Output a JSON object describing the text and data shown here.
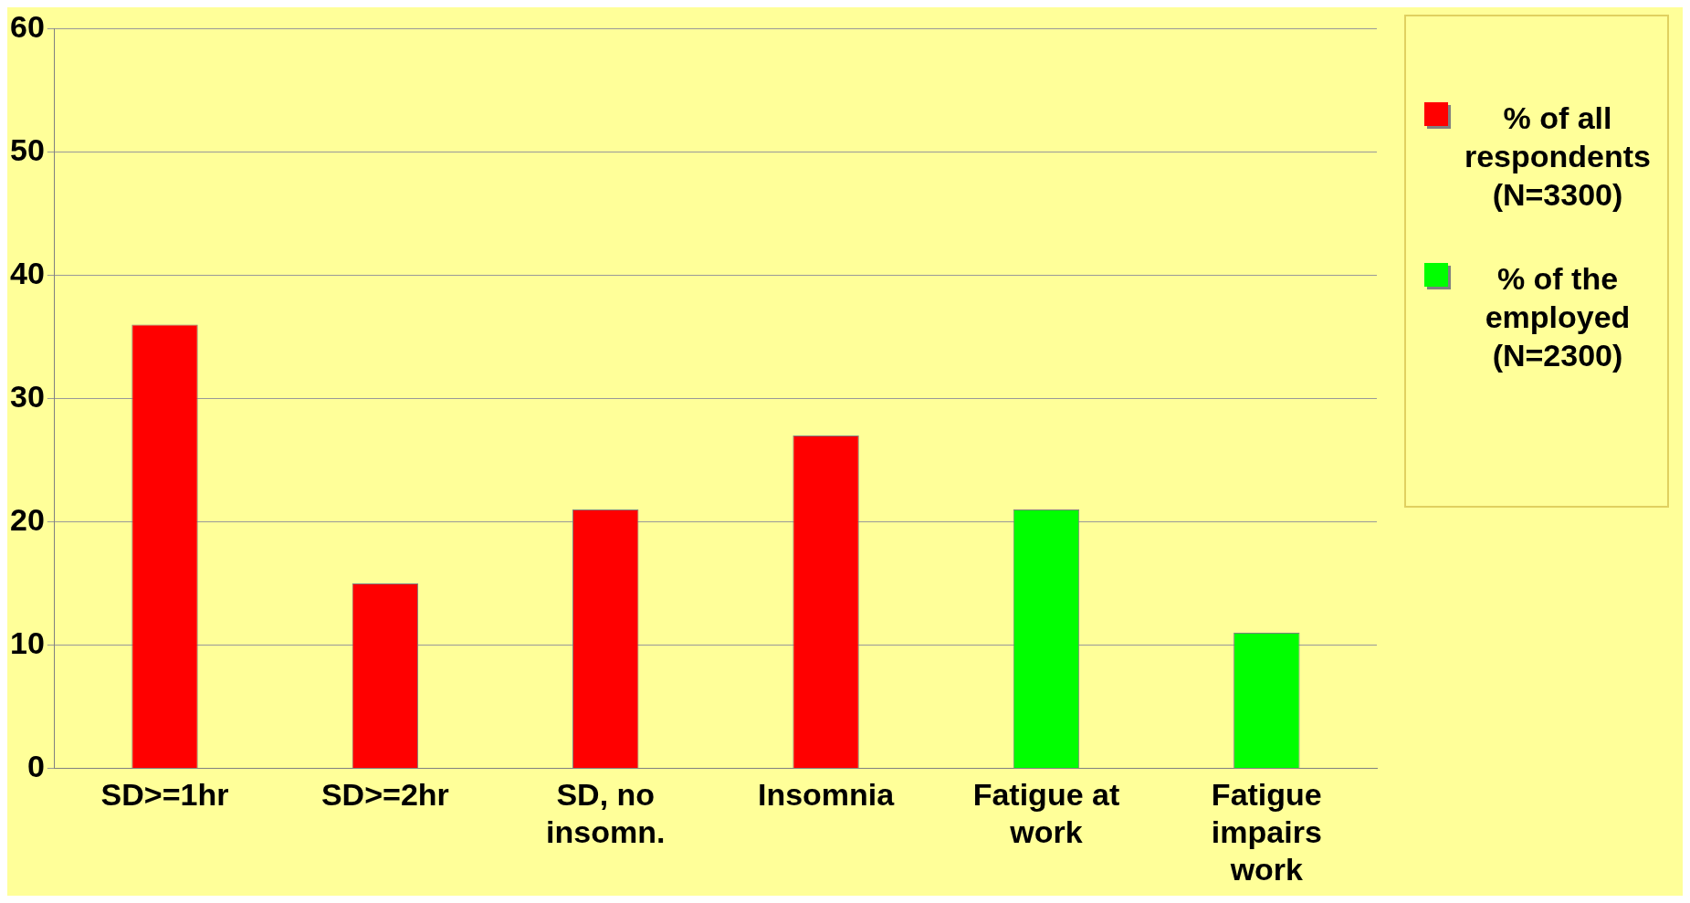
{
  "chart_data": {
    "type": "bar",
    "categories": [
      "SD>=1hr",
      "SD>=2hr",
      "SD, no insomn.",
      "Insomnia",
      "Fatigue at work",
      "Fatigue impairs work"
    ],
    "series": [
      {
        "name": "% of all respondents (N=3300)",
        "color": "#ff0000",
        "values": [
          36,
          15,
          21,
          27,
          null,
          null
        ]
      },
      {
        "name": "% of the employed (N=2300)",
        "color": "#00ff00",
        "values": [
          null,
          null,
          null,
          null,
          21,
          11
        ]
      }
    ],
    "ylim": [
      0,
      60
    ],
    "yticks": [
      0,
      10,
      20,
      30,
      40,
      50,
      60
    ],
    "grid": "y",
    "legend": "right"
  }
}
